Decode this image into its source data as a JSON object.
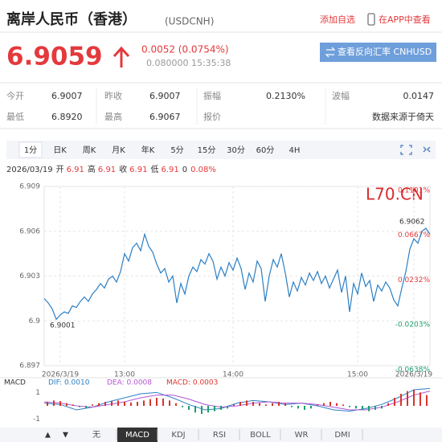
{
  "header": {
    "title": "离岸人民币（香港）",
    "code": "(USDCNH)",
    "add_watchlist": "添加自选",
    "open_app": "在APP中查看"
  },
  "quote": {
    "price": "6.9059",
    "change": "0.0052 (0.0754%)",
    "detail": "0.080000 15:35:38",
    "reverse_button": "查看反向汇率 CNHUSD"
  },
  "stats": {
    "rows": [
      [
        "今开",
        "6.9007",
        "昨收",
        "6.9007",
        "振幅",
        "0.2130%",
        "波幅",
        "0.0147"
      ],
      [
        "最低",
        "6.8920",
        "最高",
        "6.9067",
        "报价",
        "数据来源于倚天"
      ]
    ]
  },
  "tabs": {
    "items": [
      "1分",
      "日K",
      "周K",
      "月K",
      "年K",
      "5分",
      "15分",
      "30分",
      "60分",
      "4H"
    ],
    "active": 0
  },
  "info": {
    "date": "2026/03/19",
    "fields": [
      {
        "label": "开",
        "value": "6.91"
      },
      {
        "label": "高",
        "value": "6.91"
      },
      {
        "label": "收",
        "value": "6.91"
      },
      {
        "label": "低",
        "value": "6.91"
      }
    ],
    "volume": "0",
    "percent": "0.08%"
  },
  "chart_data": [
    {
      "type": "line",
      "color": "#2b7fc4",
      "grid": true,
      "watermark": "L70.CN",
      "categories": [
        null,
        null,
        null,
        null,
        "2026/3/19",
        null,
        null,
        null,
        null,
        null,
        null,
        null,
        null,
        null,
        null,
        null,
        null,
        null,
        null,
        null,
        "13:00",
        null,
        null,
        null,
        null,
        null,
        null,
        null,
        null,
        null,
        null,
        null,
        null,
        null,
        null,
        null,
        null,
        null,
        null,
        null,
        null,
        null,
        null,
        null,
        null,
        null,
        null,
        "14:00",
        null,
        null,
        null,
        null,
        null,
        null,
        null,
        null,
        null,
        null,
        null,
        null,
        null,
        null,
        null,
        null,
        null,
        null,
        null,
        null,
        null,
        null,
        null,
        null,
        null,
        null,
        null,
        null,
        null,
        null,
        "15:00",
        null,
        null,
        null,
        null,
        null,
        null,
        null,
        null,
        null,
        null,
        null,
        null,
        null,
        "2026/3/19",
        null,
        null,
        null,
        null
      ],
      "values": [
        6.9015,
        6.9012,
        6.9008,
        6.9001,
        6.9004,
        6.9006,
        6.9005,
        6.901,
        6.9009,
        6.9013,
        6.9016,
        6.9013,
        6.9018,
        6.9021,
        6.9025,
        6.9022,
        6.9028,
        6.903,
        6.9026,
        6.9033,
        6.9045,
        6.904,
        6.9049,
        6.9052,
        6.9047,
        6.9058,
        6.905,
        6.9046,
        6.9038,
        6.9032,
        6.9035,
        6.9026,
        6.903,
        6.9012,
        6.9025,
        6.9018,
        6.903,
        6.9036,
        6.9033,
        6.9041,
        6.9038,
        6.9045,
        6.904,
        6.9028,
        6.9036,
        6.903,
        6.9039,
        6.9034,
        6.9042,
        6.9035,
        6.9021,
        6.9032,
        6.9026,
        6.904,
        6.9035,
        6.9013,
        6.903,
        6.9041,
        6.9036,
        6.9045,
        6.9032,
        6.9016,
        6.9026,
        6.902,
        6.9029,
        6.9024,
        6.9032,
        6.9027,
        6.9033,
        6.9025,
        6.903,
        6.9022,
        6.9028,
        6.9034,
        6.9019,
        6.903,
        6.9006,
        6.9025,
        6.9018,
        6.9032,
        6.9023,
        6.9027,
        6.9013,
        6.9024,
        6.902,
        6.9026,
        6.9022,
        6.9014,
        6.901,
        6.9022,
        6.9033,
        6.9048,
        6.9055,
        6.9052,
        6.906,
        6.9062,
        6.9058
      ],
      "ylim": [
        6.897,
        6.909
      ],
      "yticks": [
        6.909,
        6.906,
        6.903,
        6.9,
        6.897
      ],
      "y2lim": [
        -0.0638,
        0.1101
      ],
      "y2ticks": [
        {
          "value": 0.1101,
          "label": "0.1101%"
        },
        {
          "value": 0.0667,
          "label": "0.0667%"
        },
        {
          "value": 0.0232,
          "label": "0.0232%"
        },
        {
          "value": -0.0203,
          "label": "-0.0203%"
        },
        {
          "value": -0.0638,
          "label": "-0.0638%"
        }
      ],
      "annotations": [
        {
          "text": "6.9001"
        },
        {
          "text": "6.9062"
        }
      ]
    },
    {
      "type": "macd",
      "title": "MACD",
      "ylim": [
        -1.5,
        1.5
      ],
      "yticks": [
        1,
        -1
      ],
      "series": [
        {
          "name": "DIF: 0.0010",
          "type": "line",
          "color": "#2b7fc4",
          "values": [
            0.2,
            0.1,
            -0.3,
            -0.1,
            0.3,
            0.6,
            0.9,
            1.0,
            0.6,
            0.1,
            -0.3,
            -0.2,
            0.2,
            0.4,
            0.3,
            0.1,
            0.2,
            0.0,
            -0.3,
            -0.4,
            -0.2,
            0.1,
            0.6,
            1.2,
            1.3
          ]
        },
        {
          "name": "DEA: 0.0008",
          "type": "line",
          "color": "#b455d6",
          "values": [
            0.3,
            0.2,
            0.0,
            -0.1,
            0.1,
            0.3,
            0.6,
            0.8,
            0.8,
            0.5,
            0.1,
            -0.1,
            0.0,
            0.2,
            0.3,
            0.2,
            0.2,
            0.1,
            -0.1,
            -0.3,
            -0.3,
            -0.1,
            0.3,
            0.8,
            1.1
          ]
        },
        {
          "name": "MACD: 0.0003",
          "type": "bar",
          "color": "#d9342b",
          "negative_color": "#1d9e6b",
          "values": [
            0.3,
            0.4,
            0.35,
            0.2,
            0.1,
            -0.1,
            -0.2,
            0.1,
            0.2,
            0.3,
            0.35,
            0.4,
            0.3,
            0.25,
            0.3,
            0.4,
            0.5,
            0.6,
            0.55,
            0.4,
            0.2,
            -0.1,
            -0.3,
            -0.5,
            -0.6,
            -0.5,
            -0.4,
            -0.3,
            -0.2,
            0.1,
            0.3,
            0.4,
            0.3,
            0.2,
            0.1,
            0.2,
            0.3,
            0.2,
            -0.1,
            -0.2,
            -0.3,
            -0.2,
            0.1,
            0.2,
            0.3,
            0.2,
            0.1,
            -0.1,
            -0.2,
            -0.3,
            -0.4,
            -0.3,
            -0.2,
            0.2,
            0.6,
            0.9,
            1.1,
            1.2,
            1.0,
            0.8
          ]
        }
      ]
    }
  ],
  "indicator_tabs": {
    "items": [
      "无",
      "MACD",
      "KDJ",
      "RSI",
      "BOLL",
      "WR",
      "DMI"
    ],
    "active": 1
  }
}
